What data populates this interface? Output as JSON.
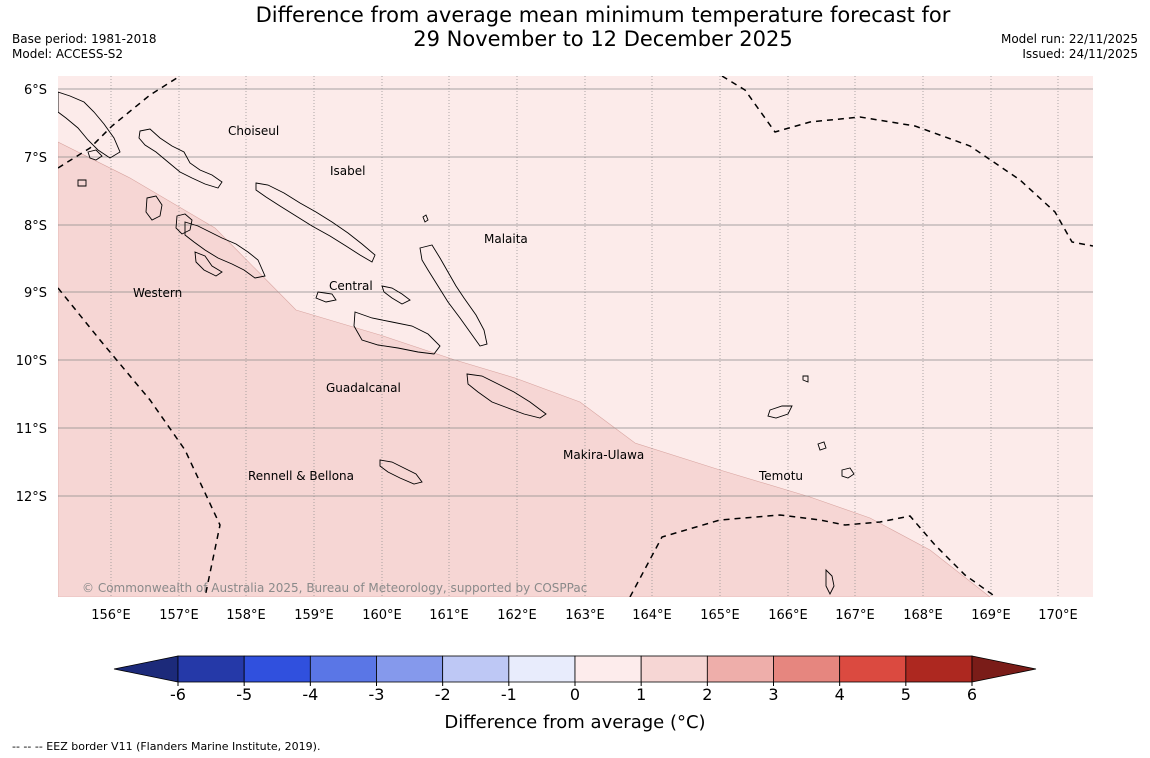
{
  "title": {
    "line1": "Difference from average mean minimum temperature forecast for",
    "line2": "29 November to 12 December 2025"
  },
  "meta_left": {
    "base_period": "Base period: 1981-2018",
    "model": "Model: ACCESS-S2"
  },
  "meta_right": {
    "model_run": "Model run: 22/11/2025",
    "issued": "Issued: 24/11/2025"
  },
  "lat_labels": [
    "6°S",
    "7°S",
    "8°S",
    "9°S",
    "10°S",
    "11°S",
    "12°S"
  ],
  "lon_labels": [
    "156°E",
    "157°E",
    "158°E",
    "159°E",
    "160°E",
    "161°E",
    "162°E",
    "163°E",
    "164°E",
    "165°E",
    "166°E",
    "167°E",
    "168°E",
    "169°E",
    "170°E"
  ],
  "region_labels": [
    "Choiseul",
    "Isabel",
    "Malaita",
    "Western",
    "Central",
    "Guadalcanal",
    "Makira-Ulawa",
    "Rennell & Bellona",
    "Temotu"
  ],
  "copyright": "© Commonwealth of Australia 2025, Bureau of Meteorology, supported by COSPPac",
  "legend": {
    "ticks": [
      "-6",
      "-5",
      "-4",
      "-3",
      "-2",
      "-1",
      "0",
      "1",
      "2",
      "3",
      "4",
      "5",
      "6"
    ],
    "colors": [
      "#2539a8",
      "#3050de",
      "#5a76e6",
      "#8599ec",
      "#bec8f5",
      "#e8ecfc",
      "#fdecec",
      "#f6d6d4",
      "#eeaeaa",
      "#e6867f",
      "#db4a40",
      "#ad2820"
    ],
    "extend_low_color": "#1c2a7a",
    "extend_high_color": "#7a1c18",
    "label": "Difference from average (°C)"
  },
  "footer": "--  --  -- EEZ border V11 (Flanders Marine Institute, 2019).",
  "fill_colors": {
    "zone_0_1": "#fcebea",
    "zone_1_2": "#f6d6d4"
  }
}
